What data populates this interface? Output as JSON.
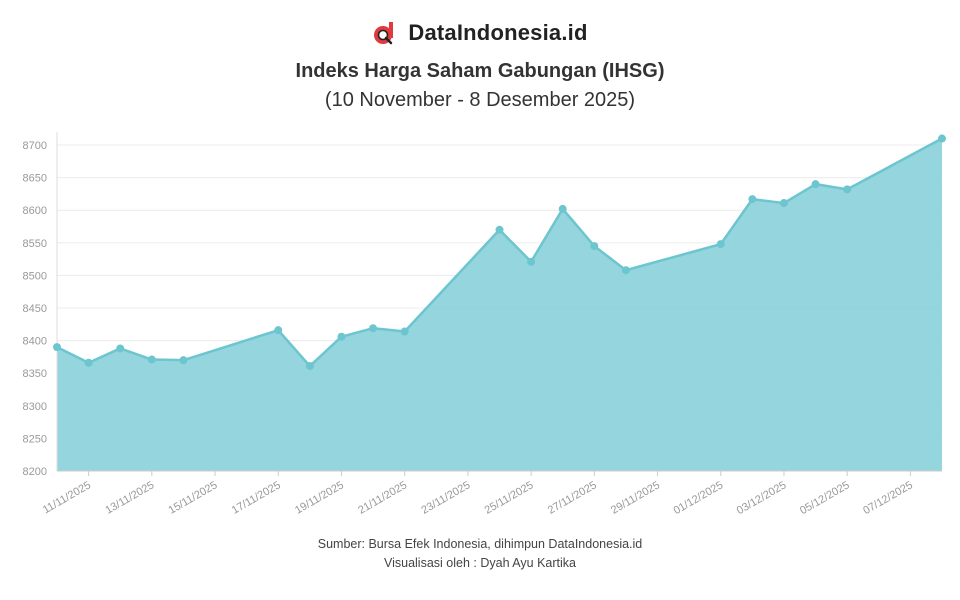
{
  "brand": {
    "name": "DataIndonesia.id",
    "logo_icon": "data-indonesia-logo-icon",
    "logo_color": "#e03a3e"
  },
  "header": {
    "title": "Indeks Harga Saham Gabungan (IHSG)",
    "subtitle": "(10 November - 8 Desember 2025)"
  },
  "footer": {
    "source": "Sumber: Bursa Efek Indonesia, dihimpun DataIndonesia.id",
    "credit": "Visualisasi oleh : Dyah Ayu Kartika"
  },
  "chart_data": {
    "type": "area",
    "title": "Indeks Harga Saham Gabungan (IHSG)",
    "subtitle": "(10 November - 8 Desember 2025)",
    "xlabel": "",
    "ylabel": "",
    "ylim": [
      8200,
      8720
    ],
    "yticks": [
      8200,
      8250,
      8300,
      8350,
      8400,
      8450,
      8500,
      8550,
      8600,
      8650,
      8700
    ],
    "xlim": [
      "2025-11-10",
      "2025-12-08"
    ],
    "xticks": [
      "2025-11-11",
      "2025-11-13",
      "2025-11-15",
      "2025-11-17",
      "2025-11-19",
      "2025-11-21",
      "2025-11-23",
      "2025-11-25",
      "2025-11-27",
      "2025-11-29",
      "2025-12-01",
      "2025-12-03",
      "2025-12-05",
      "2025-12-07"
    ],
    "xtick_labels": [
      "11/11/2025",
      "13/11/2025",
      "15/11/2025",
      "17/11/2025",
      "19/11/2025",
      "21/11/2025",
      "23/11/2025",
      "25/11/2025",
      "27/11/2025",
      "29/11/2025",
      "01/12/2025",
      "03/12/2025",
      "05/12/2025",
      "07/12/2025"
    ],
    "grid": true,
    "legend": "none",
    "color": "#6cc5cf",
    "fill_color": "#8fd3db",
    "series": [
      {
        "x": [
          "2025-11-10",
          "2025-11-11",
          "2025-11-12",
          "2025-11-13",
          "2025-11-14",
          "2025-11-17",
          "2025-11-18",
          "2025-11-19",
          "2025-11-20",
          "2025-11-21",
          "2025-11-24",
          "2025-11-25",
          "2025-11-26",
          "2025-11-27",
          "2025-11-28",
          "2025-12-01",
          "2025-12-02",
          "2025-12-03",
          "2025-12-04",
          "2025-12-05",
          "2025-12-08"
        ],
        "values": [
          8390,
          8366,
          8388,
          8371,
          8370,
          8416,
          8361,
          8406,
          8419,
          8414,
          8570,
          8521,
          8602,
          8545,
          8508,
          8548,
          8617,
          8611,
          8640,
          8632,
          8710
        ]
      }
    ]
  }
}
